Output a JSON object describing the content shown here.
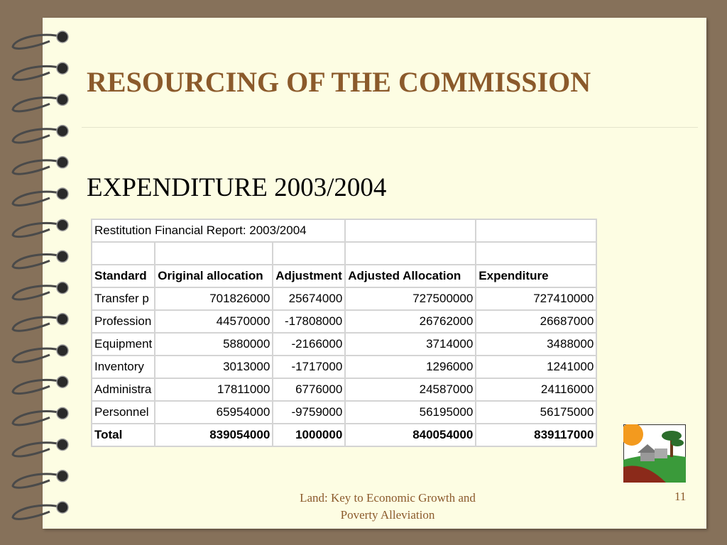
{
  "slide": {
    "title": "RESOURCING OF THE COMMISSION",
    "subtitle": "EXPENDITURE 2003/2004",
    "table": {
      "caption": "Restitution Financial Report: 2003/2004",
      "header": [
        "Standard",
        "Original allocation",
        "Adjustment",
        "Adjusted Allocation",
        "Expenditure"
      ],
      "rows": [
        [
          "Transfer  p",
          701826000,
          25674000,
          727500000,
          727410000
        ],
        [
          "Profession",
          44570000,
          -17808000,
          26762000,
          26687000
        ],
        [
          "Equipment",
          5880000,
          -2166000,
          3714000,
          3488000
        ],
        [
          "Inventory",
          3013000,
          -1717000,
          1296000,
          1241000
        ],
        [
          "Administra",
          17811000,
          6776000,
          24587000,
          24116000
        ],
        [
          "Personnel",
          65954000,
          -9759000,
          56195000,
          56175000
        ]
      ],
      "total": [
        "Total",
        839054000,
        1000000,
        840054000,
        839117000
      ]
    },
    "footer": [
      "Land: Key to Economic Growth and",
      "Poverty Alleviation"
    ],
    "page_number": "11"
  }
}
